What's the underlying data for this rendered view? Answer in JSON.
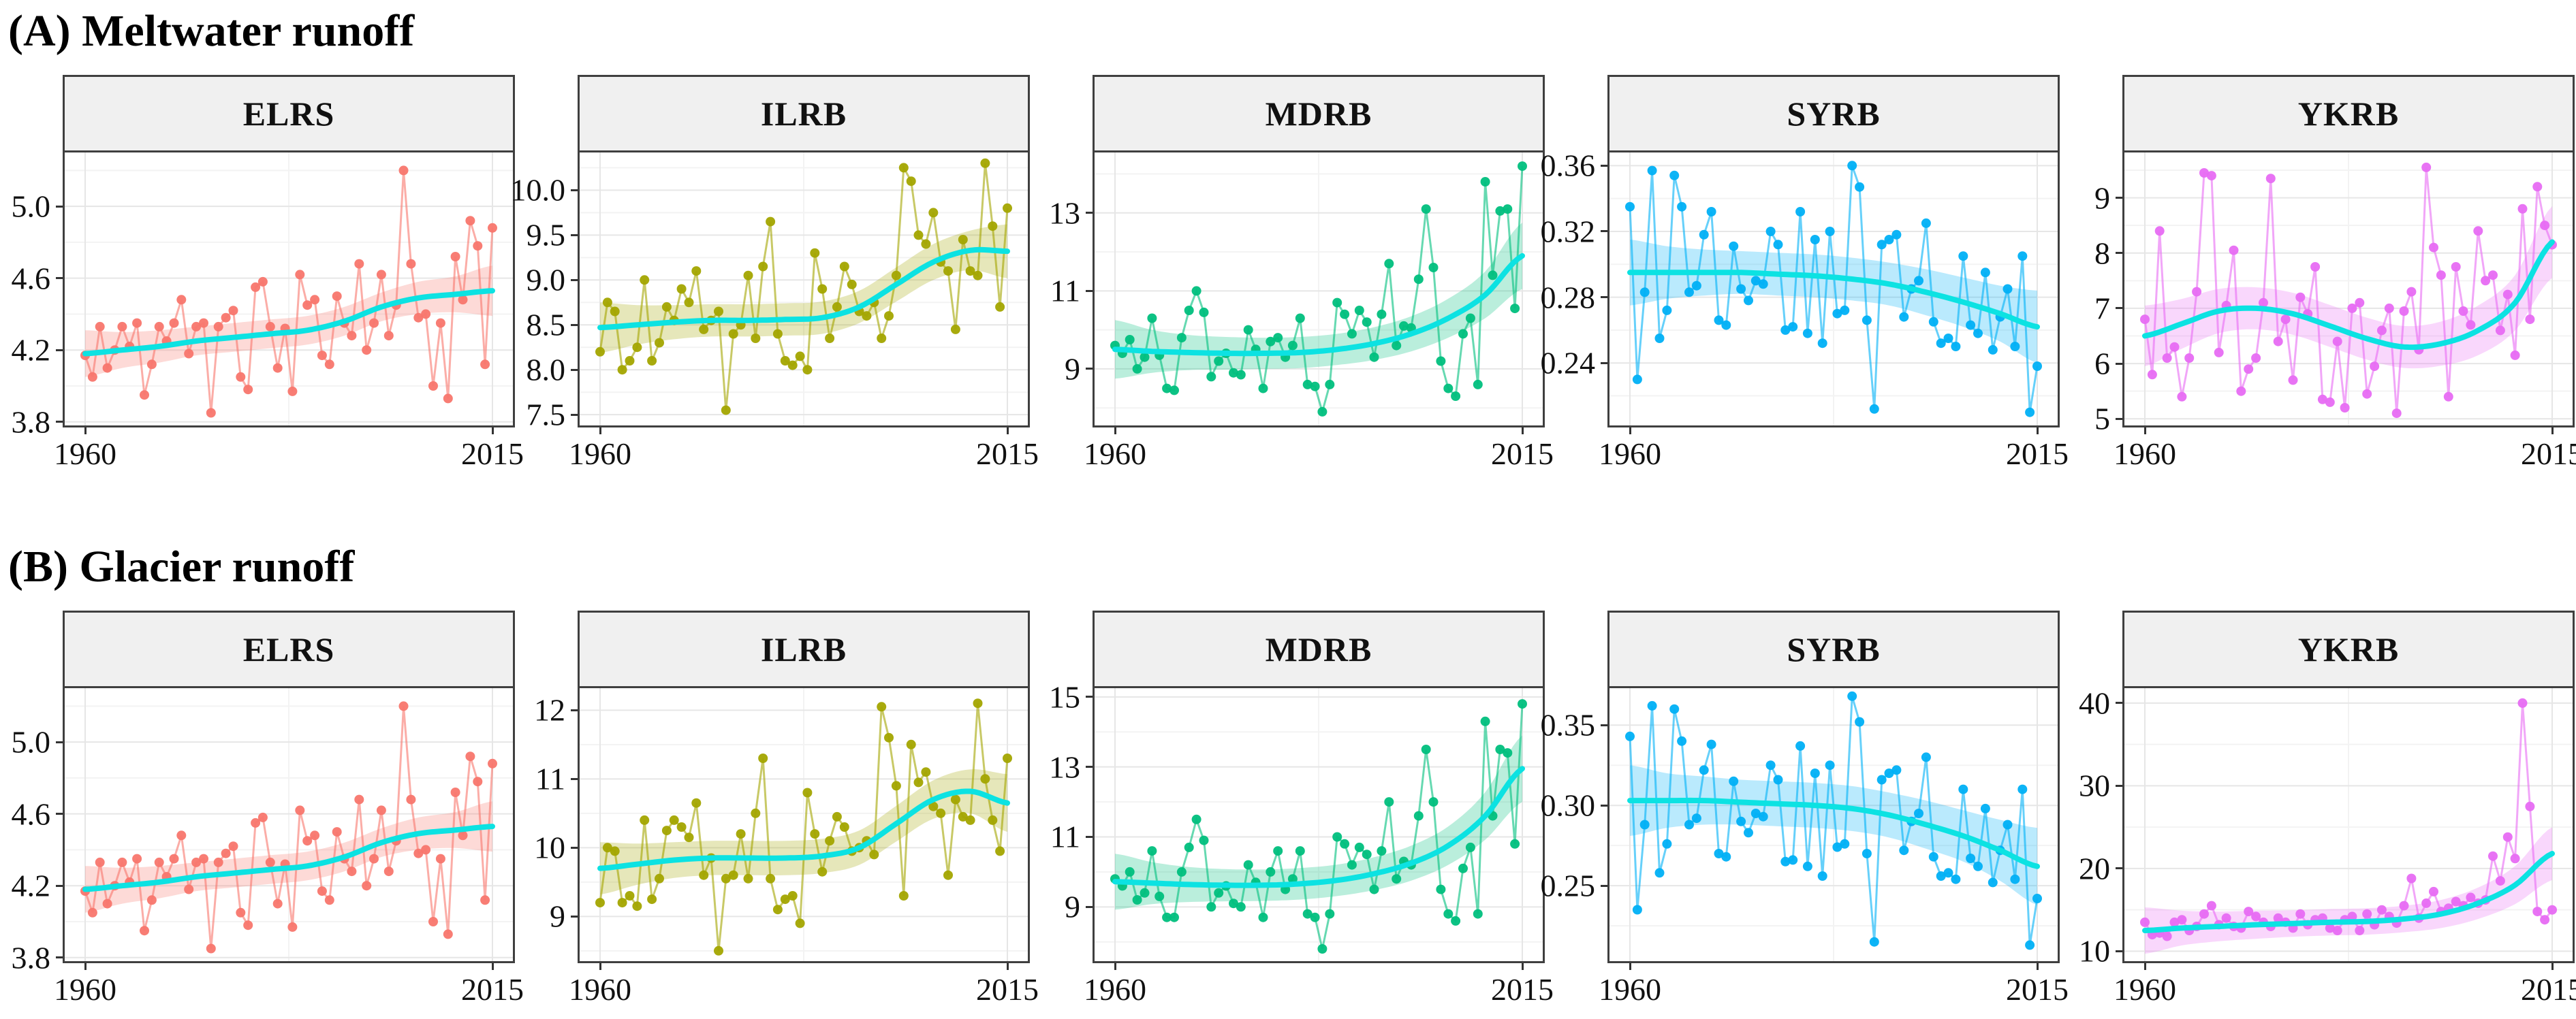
{
  "rows": {
    "A": {
      "title": "(A) Meltwater runoff"
    },
    "B": {
      "title": "(B) Glacier runoff"
    }
  },
  "x_axis": {
    "start": 1960,
    "end": 2015,
    "tick_labels": [
      "1960",
      "2015"
    ]
  },
  "colors": {
    "trend": "#0ce2e2",
    "panel_border": "#3f3f3f",
    "strip_bg": "#f0f0f0",
    "grid_major": "#e6e6e6",
    "grid_minor": "#f3f3f3"
  },
  "trend_x": [
    1960,
    1965,
    1970,
    1975,
    1980,
    1985,
    1990,
    1995,
    2000,
    2005,
    2010,
    2015
  ],
  "chart_data": [
    {
      "type": "line",
      "row": "A",
      "basin": "ELRS",
      "color": "#f8766d",
      "ylim": [
        3.78,
        5.3
      ],
      "yticks": [
        5.0,
        4.6,
        4.2,
        3.8
      ],
      "ytick_labels": [
        "5.0",
        "4.6",
        "4.2",
        "3.8"
      ],
      "values": [
        4.17,
        4.05,
        4.33,
        4.1,
        4.2,
        4.33,
        4.22,
        4.35,
        3.95,
        4.12,
        4.33,
        4.25,
        4.35,
        4.48,
        4.18,
        4.33,
        4.35,
        3.85,
        4.33,
        4.38,
        4.42,
        4.05,
        3.98,
        4.55,
        4.58,
        4.33,
        4.1,
        4.32,
        3.97,
        4.62,
        4.45,
        4.48,
        4.17,
        4.12,
        4.5,
        4.35,
        4.28,
        4.68,
        4.2,
        4.35,
        4.62,
        4.28,
        4.45,
        5.2,
        4.68,
        4.38,
        4.4,
        4.0,
        4.35,
        3.93,
        4.72,
        4.48,
        4.92,
        4.78,
        4.12,
        4.88
      ],
      "trend": [
        4.18,
        4.2,
        4.22,
        4.25,
        4.27,
        4.29,
        4.31,
        4.36,
        4.44,
        4.49,
        4.51,
        4.53
      ],
      "band": [
        0.13,
        0.1,
        0.09,
        0.08,
        0.08,
        0.08,
        0.08,
        0.08,
        0.08,
        0.09,
        0.1,
        0.14
      ]
    },
    {
      "type": "line",
      "row": "A",
      "basin": "ILRB",
      "color": "#a3a500",
      "ylim": [
        7.38,
        10.42
      ],
      "yticks": [
        10.0,
        9.5,
        9.0,
        8.5,
        8.0,
        7.5
      ],
      "ytick_labels": [
        "10.0",
        "9.5",
        "9.0",
        "8.5",
        "8.0",
        "7.5"
      ],
      "values": [
        8.2,
        8.75,
        8.65,
        8.0,
        8.1,
        8.25,
        9.0,
        8.1,
        8.3,
        8.7,
        8.55,
        8.9,
        8.75,
        9.1,
        8.45,
        8.55,
        8.65,
        7.55,
        8.4,
        8.5,
        9.05,
        8.35,
        9.15,
        9.65,
        8.4,
        8.1,
        8.05,
        8.15,
        8.0,
        9.3,
        8.9,
        8.35,
        8.7,
        9.15,
        8.95,
        8.65,
        8.6,
        8.75,
        8.35,
        8.6,
        9.05,
        10.25,
        10.1,
        9.5,
        9.4,
        9.75,
        9.2,
        9.1,
        8.45,
        9.45,
        9.1,
        9.05,
        10.3,
        9.6,
        8.7,
        9.8
      ],
      "trend": [
        8.47,
        8.5,
        8.53,
        8.55,
        8.55,
        8.56,
        8.58,
        8.7,
        8.95,
        9.2,
        9.33,
        9.32
      ],
      "band": [
        0.28,
        0.22,
        0.19,
        0.18,
        0.18,
        0.18,
        0.18,
        0.18,
        0.19,
        0.2,
        0.22,
        0.3
      ]
    },
    {
      "type": "line",
      "row": "A",
      "basin": "MDRB",
      "color": "#00bf7d",
      "ylim": [
        7.55,
        14.55
      ],
      "yticks": [
        13,
        11,
        9
      ],
      "ytick_labels": [
        "13",
        "11",
        "9"
      ],
      "values": [
        9.6,
        9.4,
        9.75,
        9.0,
        9.3,
        10.3,
        9.35,
        8.5,
        8.45,
        9.8,
        10.5,
        11.0,
        10.45,
        8.8,
        9.2,
        9.4,
        8.9,
        8.85,
        10.0,
        9.5,
        8.5,
        9.7,
        9.8,
        9.3,
        9.6,
        10.3,
        8.6,
        8.55,
        7.9,
        8.6,
        10.7,
        10.4,
        9.9,
        10.5,
        10.2,
        9.3,
        10.4,
        11.7,
        9.6,
        10.1,
        10.05,
        11.3,
        13.1,
        11.6,
        9.2,
        8.5,
        8.3,
        9.9,
        10.3,
        8.6,
        13.8,
        11.4,
        13.05,
        13.1,
        10.55,
        14.2
      ],
      "trend": [
        9.5,
        9.45,
        9.42,
        9.4,
        9.4,
        9.42,
        9.5,
        9.65,
        9.9,
        10.3,
        10.9,
        11.9
      ],
      "band": [
        0.75,
        0.55,
        0.45,
        0.42,
        0.4,
        0.4,
        0.4,
        0.42,
        0.45,
        0.5,
        0.6,
        0.85
      ]
    },
    {
      "type": "line",
      "row": "A",
      "basin": "SYRB",
      "color": "#00b0f6",
      "ylim": [
        0.202,
        0.368
      ],
      "yticks": [
        0.36,
        0.32,
        0.28,
        0.24
      ],
      "ytick_labels": [
        "0.36",
        "0.32",
        "0.28",
        "0.24"
      ],
      "values": [
        0.335,
        0.23,
        0.283,
        0.357,
        0.255,
        0.272,
        0.354,
        0.335,
        0.283,
        0.287,
        0.318,
        0.332,
        0.266,
        0.263,
        0.311,
        0.285,
        0.278,
        0.29,
        0.288,
        0.32,
        0.312,
        0.26,
        0.262,
        0.332,
        0.258,
        0.315,
        0.252,
        0.32,
        0.27,
        0.272,
        0.36,
        0.347,
        0.266,
        0.212,
        0.312,
        0.315,
        0.318,
        0.268,
        0.285,
        0.29,
        0.325,
        0.265,
        0.252,
        0.255,
        0.25,
        0.305,
        0.263,
        0.258,
        0.295,
        0.248,
        0.268,
        0.285,
        0.25,
        0.305,
        0.21,
        0.238
      ],
      "trend": [
        0.295,
        0.295,
        0.295,
        0.295,
        0.294,
        0.293,
        0.291,
        0.288,
        0.283,
        0.277,
        0.27,
        0.262
      ],
      "band": [
        0.02,
        0.016,
        0.014,
        0.013,
        0.013,
        0.013,
        0.013,
        0.013,
        0.014,
        0.015,
        0.017,
        0.022
      ]
    },
    {
      "type": "line",
      "row": "A",
      "basin": "YKRB",
      "color": "#e76bf3",
      "ylim": [
        4.88,
        9.82
      ],
      "yticks": [
        9,
        8,
        7,
        6,
        5
      ],
      "ytick_labels": [
        "9",
        "8",
        "7",
        "6",
        "5"
      ],
      "values": [
        6.8,
        5.8,
        8.4,
        6.1,
        6.3,
        5.4,
        6.1,
        7.3,
        9.45,
        9.4,
        6.2,
        7.05,
        8.05,
        5.5,
        5.9,
        6.1,
        7.1,
        9.35,
        6.4,
        6.8,
        5.7,
        7.2,
        6.9,
        7.75,
        5.35,
        5.3,
        6.4,
        5.2,
        7.0,
        7.1,
        5.45,
        5.95,
        6.6,
        7.0,
        5.1,
        6.95,
        7.3,
        6.25,
        9.55,
        8.1,
        7.6,
        5.4,
        7.75,
        6.95,
        6.7,
        8.4,
        7.5,
        7.6,
        6.6,
        7.25,
        6.15,
        8.8,
        6.8,
        9.2,
        8.5,
        8.15
      ],
      "trend": [
        6.5,
        6.72,
        6.95,
        7.0,
        6.9,
        6.68,
        6.45,
        6.3,
        6.36,
        6.6,
        7.1,
        8.2
      ],
      "band": [
        0.55,
        0.45,
        0.4,
        0.38,
        0.38,
        0.38,
        0.38,
        0.38,
        0.4,
        0.45,
        0.5,
        0.65
      ]
    },
    {
      "type": "line",
      "row": "B",
      "basin": "ELRS",
      "color": "#f8766d",
      "ylim": [
        3.78,
        5.3
      ],
      "yticks": [
        5.0,
        4.6,
        4.2,
        3.8
      ],
      "ytick_labels": [
        "5.0",
        "4.6",
        "4.2",
        "3.8"
      ],
      "values": [
        4.17,
        4.05,
        4.33,
        4.1,
        4.2,
        4.33,
        4.22,
        4.35,
        3.95,
        4.12,
        4.33,
        4.25,
        4.35,
        4.48,
        4.18,
        4.33,
        4.35,
        3.85,
        4.33,
        4.38,
        4.42,
        4.05,
        3.98,
        4.55,
        4.58,
        4.33,
        4.1,
        4.32,
        3.97,
        4.62,
        4.45,
        4.48,
        4.17,
        4.12,
        4.5,
        4.35,
        4.28,
        4.68,
        4.2,
        4.35,
        4.62,
        4.28,
        4.45,
        5.2,
        4.68,
        4.38,
        4.4,
        4.0,
        4.35,
        3.93,
        4.72,
        4.48,
        4.92,
        4.78,
        4.12,
        4.88
      ],
      "trend": [
        4.18,
        4.2,
        4.22,
        4.25,
        4.27,
        4.29,
        4.31,
        4.36,
        4.44,
        4.49,
        4.51,
        4.53
      ],
      "band": [
        0.13,
        0.1,
        0.09,
        0.08,
        0.08,
        0.08,
        0.08,
        0.08,
        0.08,
        0.09,
        0.1,
        0.14
      ]
    },
    {
      "type": "line",
      "row": "B",
      "basin": "ILRB",
      "color": "#a3a500",
      "ylim": [
        8.35,
        12.32
      ],
      "yticks": [
        12,
        11,
        10,
        9
      ],
      "ytick_labels": [
        "12",
        "11",
        "10",
        "9"
      ],
      "values": [
        9.2,
        10.0,
        9.95,
        9.2,
        9.3,
        9.15,
        10.4,
        9.25,
        9.55,
        10.25,
        10.4,
        10.3,
        10.15,
        10.65,
        9.6,
        9.85,
        8.5,
        9.55,
        9.6,
        10.2,
        9.55,
        10.5,
        11.3,
        9.55,
        9.1,
        9.25,
        9.3,
        8.9,
        10.8,
        10.2,
        9.65,
        10.1,
        10.45,
        10.3,
        9.95,
        10.0,
        10.1,
        9.9,
        12.05,
        11.6,
        10.9,
        9.3,
        11.5,
        10.95,
        11.1,
        10.6,
        10.5,
        9.6,
        10.7,
        10.45,
        10.4,
        12.1,
        11.0,
        10.4,
        9.95,
        11.3
      ],
      "trend": [
        9.7,
        9.76,
        9.82,
        9.85,
        9.85,
        9.85,
        9.88,
        10.0,
        10.35,
        10.7,
        10.82,
        10.65
      ],
      "band": [
        0.38,
        0.3,
        0.26,
        0.25,
        0.25,
        0.25,
        0.25,
        0.25,
        0.26,
        0.28,
        0.32,
        0.42
      ]
    },
    {
      "type": "line",
      "row": "B",
      "basin": "MDRB",
      "color": "#00bf7d",
      "ylim": [
        7.45,
        15.25
      ],
      "yticks": [
        15,
        13,
        11,
        9
      ],
      "ytick_labels": [
        "15",
        "13",
        "11",
        "9"
      ],
      "values": [
        9.8,
        9.6,
        10.0,
        9.2,
        9.4,
        10.6,
        9.3,
        8.7,
        8.7,
        10.0,
        10.7,
        11.5,
        10.9,
        9.0,
        9.4,
        9.6,
        9.1,
        9.0,
        10.2,
        9.7,
        8.7,
        10.0,
        10.6,
        9.5,
        9.8,
        10.6,
        8.8,
        8.7,
        7.8,
        8.8,
        11.0,
        10.8,
        10.2,
        10.7,
        10.5,
        9.5,
        10.6,
        12.0,
        9.8,
        10.3,
        10.2,
        11.6,
        13.5,
        12.0,
        9.5,
        8.8,
        8.6,
        10.1,
        10.7,
        8.8,
        14.3,
        11.6,
        13.5,
        13.4,
        10.8,
        14.8
      ],
      "trend": [
        9.72,
        9.68,
        9.64,
        9.62,
        9.62,
        9.66,
        9.76,
        9.95,
        10.25,
        10.75,
        11.6,
        12.95
      ],
      "band": [
        0.8,
        0.6,
        0.5,
        0.46,
        0.45,
        0.45,
        0.45,
        0.47,
        0.5,
        0.55,
        0.68,
        0.95
      ]
    },
    {
      "type": "line",
      "row": "B",
      "basin": "SYRB",
      "color": "#00b0f6",
      "ylim": [
        0.203,
        0.373
      ],
      "yticks": [
        0.35,
        0.3,
        0.25
      ],
      "ytick_labels": [
        "0.35",
        "0.30",
        "0.25"
      ],
      "values": [
        0.343,
        0.235,
        0.288,
        0.362,
        0.258,
        0.276,
        0.36,
        0.34,
        0.288,
        0.292,
        0.322,
        0.338,
        0.27,
        0.268,
        0.315,
        0.29,
        0.283,
        0.295,
        0.293,
        0.325,
        0.316,
        0.265,
        0.266,
        0.337,
        0.262,
        0.32,
        0.256,
        0.325,
        0.274,
        0.276,
        0.368,
        0.352,
        0.27,
        0.215,
        0.316,
        0.32,
        0.322,
        0.272,
        0.29,
        0.295,
        0.33,
        0.268,
        0.256,
        0.258,
        0.254,
        0.31,
        0.267,
        0.262,
        0.298,
        0.252,
        0.272,
        0.288,
        0.254,
        0.31,
        0.213,
        0.242
      ],
      "trend": [
        0.303,
        0.303,
        0.303,
        0.302,
        0.301,
        0.3,
        0.298,
        0.294,
        0.288,
        0.281,
        0.272,
        0.262
      ],
      "band": [
        0.022,
        0.017,
        0.015,
        0.014,
        0.014,
        0.014,
        0.014,
        0.014,
        0.015,
        0.016,
        0.019,
        0.024
      ]
    },
    {
      "type": "line",
      "row": "B",
      "basin": "YKRB",
      "color": "#e76bf3",
      "ylim": [
        8.8,
        41.8
      ],
      "yticks": [
        40,
        30,
        20,
        10
      ],
      "ytick_labels": [
        "40",
        "30",
        "20",
        "10"
      ],
      "values": [
        13.5,
        12.0,
        12.2,
        11.8,
        13.5,
        13.8,
        12.5,
        13.0,
        14.5,
        15.5,
        13.2,
        14.0,
        13.0,
        12.8,
        14.8,
        14.2,
        13.5,
        13.0,
        14.0,
        13.5,
        12.8,
        14.5,
        13.2,
        13.8,
        14.0,
        12.8,
        12.5,
        13.8,
        14.2,
        12.5,
        14.5,
        13.2,
        15.0,
        14.2,
        13.4,
        15.5,
        18.8,
        14.0,
        15.8,
        17.2,
        14.8,
        15.2,
        16.0,
        15.5,
        16.5,
        15.8,
        16.2,
        21.5,
        18.5,
        23.8,
        21.2,
        40.0,
        27.5,
        14.8,
        13.8,
        15.0
      ],
      "trend": [
        12.5,
        12.8,
        13.0,
        13.2,
        13.35,
        13.5,
        13.6,
        13.9,
        14.5,
        15.8,
        18.0,
        21.8
      ],
      "band": [
        2.8,
        2.1,
        1.8,
        1.7,
        1.6,
        1.6,
        1.6,
        1.6,
        1.7,
        1.9,
        2.3,
        3.2
      ]
    }
  ]
}
